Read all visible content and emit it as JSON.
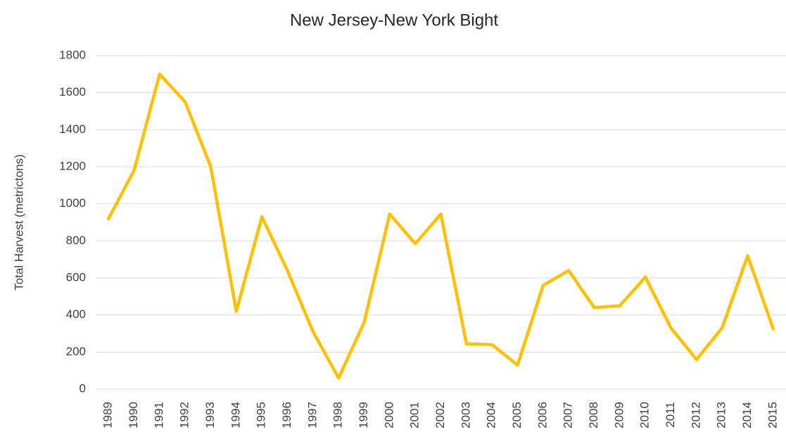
{
  "chart_data": {
    "type": "line",
    "title": "New Jersey-New York Bight",
    "ylabel": "Total Harvest (metrictons)",
    "categories": [
      "1989",
      "1990",
      "1991",
      "1992",
      "1993",
      "1994",
      "1995",
      "1996",
      "1997",
      "1998",
      "1999",
      "2000",
      "2001",
      "2002",
      "2003",
      "2004",
      "2005",
      "2006",
      "2007",
      "2008",
      "2009",
      "2010",
      "2011",
      "2012",
      "2013",
      "2014",
      "2015"
    ],
    "series": [
      {
        "name": "Total Harvest",
        "color": "#ffc000",
        "values": [
          920,
          1180,
          1700,
          1550,
          1200,
          420,
          930,
          640,
          310,
          60,
          360,
          945,
          785,
          945,
          245,
          240,
          130,
          560,
          640,
          440,
          450,
          605,
          330,
          160,
          330,
          720,
          325
        ]
      }
    ],
    "ylim": [
      0,
      1800
    ],
    "yticks": [
      0,
      200,
      400,
      600,
      800,
      1000,
      1200,
      1400,
      1600,
      1800
    ],
    "grid": true
  }
}
